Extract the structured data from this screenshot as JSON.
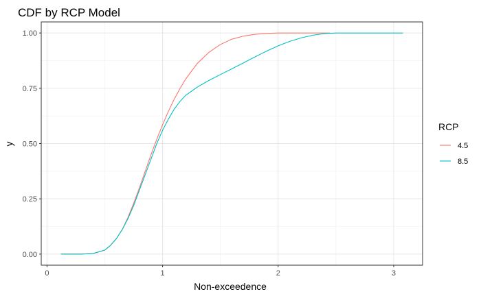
{
  "chart_data": {
    "type": "line",
    "title": "CDF by RCP Model",
    "xlabel": "Non-exceedence",
    "ylabel": "y",
    "xlim": [
      -0.05,
      3.25
    ],
    "ylim": [
      -0.05,
      1.05
    ],
    "x_ticks": [
      0,
      1,
      2,
      3
    ],
    "x_tick_labels": [
      "0",
      "1",
      "2",
      "3"
    ],
    "y_ticks": [
      0,
      0.25,
      0.5,
      0.75,
      1.0
    ],
    "y_tick_labels": [
      "0.00",
      "0.25",
      "0.50",
      "0.75",
      "1.00"
    ],
    "grid": true,
    "legend": {
      "title": "RCP",
      "placement": "right"
    },
    "series": [
      {
        "name": "4.5",
        "color": "#F8766D",
        "points": [
          [
            0.12,
            0.0
          ],
          [
            0.3,
            0.0
          ],
          [
            0.4,
            0.003
          ],
          [
            0.5,
            0.018
          ],
          [
            0.55,
            0.04
          ],
          [
            0.6,
            0.07
          ],
          [
            0.65,
            0.11
          ],
          [
            0.7,
            0.165
          ],
          [
            0.75,
            0.23
          ],
          [
            0.8,
            0.3
          ],
          [
            0.85,
            0.375
          ],
          [
            0.9,
            0.45
          ],
          [
            0.95,
            0.52
          ],
          [
            1.0,
            0.585
          ],
          [
            1.05,
            0.645
          ],
          [
            1.1,
            0.7
          ],
          [
            1.15,
            0.748
          ],
          [
            1.2,
            0.792
          ],
          [
            1.3,
            0.862
          ],
          [
            1.4,
            0.912
          ],
          [
            1.5,
            0.948
          ],
          [
            1.6,
            0.972
          ],
          [
            1.7,
            0.986
          ],
          [
            1.8,
            0.994
          ],
          [
            1.9,
            0.998
          ],
          [
            2.0,
            1.0
          ],
          [
            2.2,
            1.0
          ],
          [
            2.45,
            1.0
          ]
        ]
      },
      {
        "name": "8.5",
        "color": "#00BFC4",
        "points": [
          [
            0.12,
            0.0
          ],
          [
            0.3,
            0.0
          ],
          [
            0.4,
            0.003
          ],
          [
            0.5,
            0.018
          ],
          [
            0.55,
            0.04
          ],
          [
            0.6,
            0.07
          ],
          [
            0.65,
            0.11
          ],
          [
            0.7,
            0.16
          ],
          [
            0.75,
            0.22
          ],
          [
            0.8,
            0.29
          ],
          [
            0.85,
            0.36
          ],
          [
            0.9,
            0.43
          ],
          [
            0.95,
            0.5
          ],
          [
            1.0,
            0.56
          ],
          [
            1.05,
            0.61
          ],
          [
            1.1,
            0.655
          ],
          [
            1.15,
            0.69
          ],
          [
            1.2,
            0.718
          ],
          [
            1.3,
            0.755
          ],
          [
            1.4,
            0.785
          ],
          [
            1.5,
            0.812
          ],
          [
            1.6,
            0.838
          ],
          [
            1.7,
            0.865
          ],
          [
            1.8,
            0.892
          ],
          [
            1.9,
            0.918
          ],
          [
            2.0,
            0.942
          ],
          [
            2.1,
            0.962
          ],
          [
            2.2,
            0.978
          ],
          [
            2.3,
            0.99
          ],
          [
            2.4,
            0.997
          ],
          [
            2.5,
            1.0
          ],
          [
            2.8,
            1.0
          ],
          [
            3.08,
            1.0
          ]
        ]
      }
    ]
  }
}
